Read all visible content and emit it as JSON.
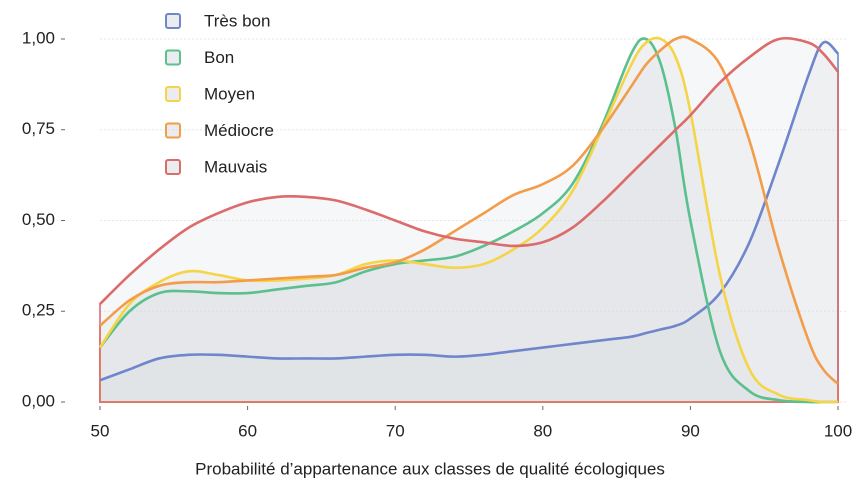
{
  "chart_data": {
    "type": "area",
    "x_label": "Probabilité d’appartenance aux classes de qualité écologiques",
    "x": [
      50,
      52,
      54,
      56,
      58,
      60,
      62,
      64,
      66,
      68,
      70,
      72,
      74,
      76,
      78,
      80,
      82,
      84,
      86,
      87,
      88,
      89,
      90,
      92,
      94,
      96,
      98,
      99,
      100
    ],
    "xlim": [
      50,
      100
    ],
    "xticks": [
      50,
      60,
      70,
      80,
      90,
      100
    ],
    "ylim": [
      0,
      1
    ],
    "yticks": [
      {
        "value": 0,
        "label": "0,00"
      },
      {
        "value": 0.25,
        "label": "0,25"
      },
      {
        "value": 0.5,
        "label": "0,50"
      },
      {
        "value": 0.75,
        "label": "0,75"
      },
      {
        "value": 1,
        "label": "1,00"
      }
    ],
    "grid": true,
    "legend": "top-left",
    "series": [
      {
        "name": "Très bon",
        "color": "#6f86cc",
        "values": [
          0.06,
          0.09,
          0.12,
          0.13,
          0.13,
          0.125,
          0.12,
          0.12,
          0.12,
          0.125,
          0.13,
          0.13,
          0.125,
          0.13,
          0.14,
          0.15,
          0.16,
          0.17,
          0.18,
          0.19,
          0.2,
          0.21,
          0.23,
          0.3,
          0.44,
          0.66,
          0.9,
          0.99,
          0.96
        ]
      },
      {
        "name": "Bon",
        "color": "#5bbf8e",
        "values": [
          0.15,
          0.25,
          0.3,
          0.305,
          0.3,
          0.3,
          0.31,
          0.32,
          0.33,
          0.36,
          0.38,
          0.39,
          0.4,
          0.43,
          0.47,
          0.52,
          0.6,
          0.76,
          0.96,
          1.0,
          0.93,
          0.75,
          0.5,
          0.14,
          0.03,
          0.005,
          0,
          0,
          0
        ]
      },
      {
        "name": "Moyen",
        "color": "#f5d547",
        "values": [
          0.15,
          0.27,
          0.33,
          0.36,
          0.35,
          0.335,
          0.335,
          0.34,
          0.35,
          0.38,
          0.39,
          0.38,
          0.37,
          0.38,
          0.42,
          0.48,
          0.58,
          0.75,
          0.93,
          0.99,
          1.0,
          0.95,
          0.8,
          0.35,
          0.09,
          0.02,
          0.005,
          0,
          0
        ]
      },
      {
        "name": "Médiocre",
        "color": "#f39c4a",
        "values": [
          0.21,
          0.28,
          0.32,
          0.33,
          0.33,
          0.335,
          0.34,
          0.345,
          0.35,
          0.37,
          0.385,
          0.42,
          0.47,
          0.52,
          0.57,
          0.6,
          0.65,
          0.75,
          0.87,
          0.93,
          0.97,
          1.0,
          1.0,
          0.93,
          0.72,
          0.42,
          0.17,
          0.09,
          0.05
        ]
      },
      {
        "name": "Mauvais",
        "color": "#dc6b6b",
        "values": [
          0.27,
          0.35,
          0.42,
          0.48,
          0.52,
          0.55,
          0.565,
          0.565,
          0.555,
          0.53,
          0.5,
          0.47,
          0.45,
          0.44,
          0.43,
          0.44,
          0.48,
          0.55,
          0.63,
          0.67,
          0.71,
          0.75,
          0.79,
          0.88,
          0.95,
          1.0,
          0.99,
          0.96,
          0.91
        ]
      }
    ]
  }
}
